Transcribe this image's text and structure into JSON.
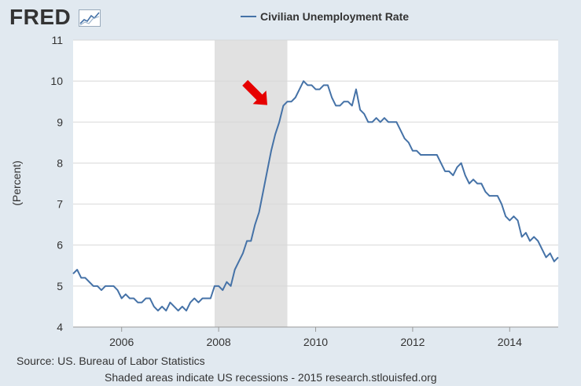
{
  "logo_text": "FRED",
  "source_text": "Source: US. Bureau of Labor Statistics",
  "footer_text": "Shaded areas indicate US recessions - 2015 research.stlouisfed.org",
  "colors": {
    "line": "#4572a7",
    "recession": "#e1e1e1",
    "arrow": "#e60000",
    "plot_bg": "#ffffff",
    "page_bg": "#e1e9f0"
  },
  "chart_data": {
    "type": "line",
    "title": "",
    "xlabel": "",
    "ylabel": "(Percent)",
    "ylim": [
      4,
      11
    ],
    "xlim": [
      2005.0,
      2015.0
    ],
    "yticks": [
      "4",
      "5",
      "6",
      "7",
      "8",
      "9",
      "10",
      "11"
    ],
    "xticks": [
      "2006",
      "2008",
      "2010",
      "2012",
      "2014"
    ],
    "grid": "horizontal",
    "legend": "top-center",
    "recession": {
      "start": "2007-12",
      "end": "2009-06"
    },
    "annotation": {
      "type": "arrow",
      "points_to": {
        "x": 2009.1,
        "y": 9.3
      }
    },
    "series": [
      {
        "name": "Civilian Unemployment Rate",
        "frequency": "monthly",
        "start": "2005-01",
        "values": [
          5.3,
          5.4,
          5.2,
          5.2,
          5.1,
          5.0,
          5.0,
          4.9,
          5.0,
          5.0,
          5.0,
          4.9,
          4.7,
          4.8,
          4.7,
          4.7,
          4.6,
          4.6,
          4.7,
          4.7,
          4.5,
          4.4,
          4.5,
          4.4,
          4.6,
          4.5,
          4.4,
          4.5,
          4.4,
          4.6,
          4.7,
          4.6,
          4.7,
          4.7,
          4.7,
          5.0,
          5.0,
          4.9,
          5.1,
          5.0,
          5.4,
          5.6,
          5.8,
          6.1,
          6.1,
          6.5,
          6.8,
          7.3,
          7.8,
          8.3,
          8.7,
          9.0,
          9.4,
          9.5,
          9.5,
          9.6,
          9.8,
          10.0,
          9.9,
          9.9,
          9.8,
          9.8,
          9.9,
          9.9,
          9.6,
          9.4,
          9.4,
          9.5,
          9.5,
          9.4,
          9.8,
          9.3,
          9.2,
          9.0,
          9.0,
          9.1,
          9.0,
          9.1,
          9.0,
          9.0,
          9.0,
          8.8,
          8.6,
          8.5,
          8.3,
          8.3,
          8.2,
          8.2,
          8.2,
          8.2,
          8.2,
          8.0,
          7.8,
          7.8,
          7.7,
          7.9,
          8.0,
          7.7,
          7.5,
          7.6,
          7.5,
          7.5,
          7.3,
          7.2,
          7.2,
          7.2,
          7.0,
          6.7,
          6.6,
          6.7,
          6.6,
          6.2,
          6.3,
          6.1,
          6.2,
          6.1,
          5.9,
          5.7,
          5.8,
          5.6,
          5.7
        ]
      }
    ]
  }
}
